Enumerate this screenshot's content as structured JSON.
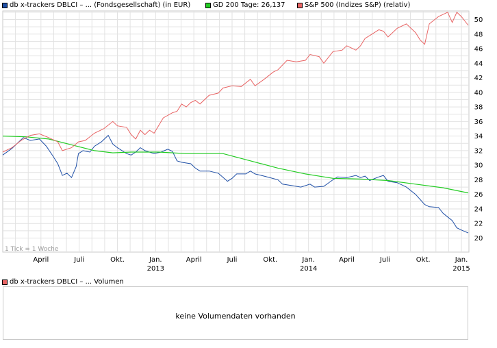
{
  "legend": [
    {
      "label": "db x-trackers DBLCI – ... (Fondsgesellschaft) (in EUR)",
      "color": "#1f4fa6"
    },
    {
      "label": "GD 200 Tage: 26,137",
      "color": "#22cc22"
    },
    {
      "label": "S&P 500 (Indizes S&P) (relativ)",
      "color": "#e86464"
    }
  ],
  "tick_note": "1 Tick = 1 Woche",
  "volume": {
    "legend_label": "db x-trackers DBLCI – ... Volumen",
    "legend_color": "#e86464",
    "message": "keine Volumendaten vorhanden"
  },
  "chart_data": {
    "type": "line",
    "x_ticks": [
      {
        "label": "April",
        "year": "",
        "t": 0.0833
      },
      {
        "label": "Juli",
        "year": "",
        "t": 0.1667
      },
      {
        "label": "Okt.",
        "year": "",
        "t": 0.25
      },
      {
        "label": "Jan.",
        "year": "2013",
        "t": 0.3333
      },
      {
        "label": "April",
        "year": "",
        "t": 0.4167
      },
      {
        "label": "Juli",
        "year": "",
        "t": 0.5
      },
      {
        "label": "Okt.",
        "year": "",
        "t": 0.5833
      },
      {
        "label": "Jan.",
        "year": "2014",
        "t": 0.6667
      },
      {
        "label": "April",
        "year": "",
        "t": 0.75
      },
      {
        "label": "Juli",
        "year": "",
        "t": 0.8333
      },
      {
        "label": "Okt.",
        "year": "",
        "t": 0.9167
      },
      {
        "label": "Jan.",
        "year": "2015",
        "t": 1.0
      }
    ],
    "y_ticks": [
      20,
      22,
      24,
      26,
      28,
      30,
      32,
      34,
      36,
      38,
      40,
      42,
      44,
      46,
      48,
      50
    ],
    "ylim": [
      19.2,
      51.4
    ],
    "series": [
      {
        "name": "db x-trackers DBLCI – ... (Fondsgesellschaft) (in EUR)",
        "color": "#1f4fa6",
        "points": [
          [
            0.0,
            31.4
          ],
          [
            0.02,
            32.3
          ],
          [
            0.045,
            33.8
          ],
          [
            0.06,
            33.4
          ],
          [
            0.08,
            33.6
          ],
          [
            0.095,
            32.6
          ],
          [
            0.11,
            31.2
          ],
          [
            0.12,
            30.2
          ],
          [
            0.13,
            28.6
          ],
          [
            0.14,
            28.9
          ],
          [
            0.15,
            28.3
          ],
          [
            0.16,
            29.8
          ],
          [
            0.165,
            31.6
          ],
          [
            0.175,
            32.0
          ],
          [
            0.19,
            31.8
          ],
          [
            0.2,
            32.6
          ],
          [
            0.215,
            33.2
          ],
          [
            0.23,
            34.1
          ],
          [
            0.24,
            32.9
          ],
          [
            0.25,
            32.4
          ],
          [
            0.27,
            31.6
          ],
          [
            0.28,
            31.4
          ],
          [
            0.29,
            31.8
          ],
          [
            0.3,
            32.4
          ],
          [
            0.31,
            32.0
          ],
          [
            0.33,
            31.6
          ],
          [
            0.345,
            31.8
          ],
          [
            0.36,
            32.2
          ],
          [
            0.37,
            31.9
          ],
          [
            0.38,
            30.6
          ],
          [
            0.39,
            30.4
          ],
          [
            0.41,
            30.2
          ],
          [
            0.42,
            29.6
          ],
          [
            0.43,
            29.2
          ],
          [
            0.45,
            29.2
          ],
          [
            0.47,
            28.9
          ],
          [
            0.49,
            27.8
          ],
          [
            0.5,
            28.2
          ],
          [
            0.51,
            28.8
          ],
          [
            0.53,
            28.8
          ],
          [
            0.54,
            29.2
          ],
          [
            0.55,
            28.8
          ],
          [
            0.57,
            28.5
          ],
          [
            0.6,
            28.0
          ],
          [
            0.61,
            27.4
          ],
          [
            0.63,
            27.2
          ],
          [
            0.65,
            27.0
          ],
          [
            0.67,
            27.4
          ],
          [
            0.68,
            27.0
          ],
          [
            0.7,
            27.1
          ],
          [
            0.72,
            28.0
          ],
          [
            0.73,
            28.4
          ],
          [
            0.75,
            28.3
          ],
          [
            0.77,
            28.6
          ],
          [
            0.78,
            28.3
          ],
          [
            0.79,
            28.5
          ],
          [
            0.8,
            27.9
          ],
          [
            0.82,
            28.4
          ],
          [
            0.83,
            28.6
          ],
          [
            0.84,
            27.8
          ],
          [
            0.86,
            27.6
          ],
          [
            0.88,
            27.0
          ],
          [
            0.9,
            26.0
          ],
          [
            0.92,
            24.6
          ],
          [
            0.93,
            24.3
          ],
          [
            0.95,
            24.2
          ],
          [
            0.96,
            23.4
          ],
          [
            0.97,
            22.9
          ],
          [
            0.98,
            22.4
          ],
          [
            0.99,
            21.4
          ],
          [
            1.0,
            21.1
          ],
          [
            1.015,
            20.7
          ]
        ]
      },
      {
        "name": "GD 200 Tage: 26,137",
        "color": "#22cc22",
        "points": [
          [
            0.0,
            34.0
          ],
          [
            0.05,
            33.9
          ],
          [
            0.1,
            33.6
          ],
          [
            0.15,
            32.8
          ],
          [
            0.2,
            32.0
          ],
          [
            0.24,
            31.7
          ],
          [
            0.28,
            31.8
          ],
          [
            0.34,
            31.8
          ],
          [
            0.4,
            31.6
          ],
          [
            0.48,
            31.6
          ],
          [
            0.54,
            30.6
          ],
          [
            0.6,
            29.6
          ],
          [
            0.66,
            28.8
          ],
          [
            0.72,
            28.2
          ],
          [
            0.78,
            28.1
          ],
          [
            0.84,
            27.9
          ],
          [
            0.9,
            27.4
          ],
          [
            0.96,
            26.9
          ],
          [
            1.015,
            26.2
          ]
        ]
      },
      {
        "name": "S&P 500 (Indizes S&P) (relativ)",
        "color": "#e86464",
        "points": [
          [
            0.0,
            31.8
          ],
          [
            0.02,
            32.4
          ],
          [
            0.04,
            33.4
          ],
          [
            0.06,
            34.1
          ],
          [
            0.08,
            34.3
          ],
          [
            0.1,
            33.8
          ],
          [
            0.12,
            33.2
          ],
          [
            0.13,
            32.0
          ],
          [
            0.15,
            32.4
          ],
          [
            0.165,
            33.2
          ],
          [
            0.18,
            33.4
          ],
          [
            0.2,
            34.4
          ],
          [
            0.22,
            35.0
          ],
          [
            0.24,
            36.0
          ],
          [
            0.25,
            35.4
          ],
          [
            0.27,
            35.2
          ],
          [
            0.28,
            34.2
          ],
          [
            0.29,
            33.6
          ],
          [
            0.3,
            34.8
          ],
          [
            0.31,
            34.2
          ],
          [
            0.32,
            34.8
          ],
          [
            0.33,
            34.4
          ],
          [
            0.35,
            36.5
          ],
          [
            0.37,
            37.2
          ],
          [
            0.38,
            37.4
          ],
          [
            0.39,
            38.4
          ],
          [
            0.4,
            38.0
          ],
          [
            0.41,
            38.6
          ],
          [
            0.42,
            38.9
          ],
          [
            0.43,
            38.4
          ],
          [
            0.45,
            39.6
          ],
          [
            0.47,
            39.9
          ],
          [
            0.48,
            40.6
          ],
          [
            0.5,
            40.9
          ],
          [
            0.52,
            40.8
          ],
          [
            0.54,
            41.8
          ],
          [
            0.55,
            40.9
          ],
          [
            0.57,
            41.8
          ],
          [
            0.59,
            42.8
          ],
          [
            0.6,
            43.1
          ],
          [
            0.62,
            44.4
          ],
          [
            0.64,
            44.2
          ],
          [
            0.66,
            44.4
          ],
          [
            0.67,
            45.2
          ],
          [
            0.69,
            44.9
          ],
          [
            0.7,
            44.0
          ],
          [
            0.72,
            45.6
          ],
          [
            0.74,
            45.8
          ],
          [
            0.75,
            46.4
          ],
          [
            0.77,
            45.8
          ],
          [
            0.78,
            46.4
          ],
          [
            0.79,
            47.4
          ],
          [
            0.8,
            47.8
          ],
          [
            0.82,
            48.6
          ],
          [
            0.83,
            48.4
          ],
          [
            0.84,
            47.6
          ],
          [
            0.86,
            48.8
          ],
          [
            0.88,
            49.4
          ],
          [
            0.9,
            48.2
          ],
          [
            0.91,
            47.2
          ],
          [
            0.92,
            46.6
          ],
          [
            0.93,
            49.4
          ],
          [
            0.95,
            50.4
          ],
          [
            0.97,
            51.0
          ],
          [
            0.98,
            49.6
          ],
          [
            0.99,
            51.0
          ],
          [
            1.0,
            50.4
          ],
          [
            1.015,
            49.2
          ]
        ]
      }
    ],
    "grid": true
  }
}
